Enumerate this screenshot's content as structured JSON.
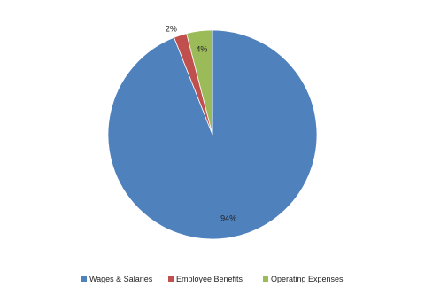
{
  "chart_data": {
    "type": "pie",
    "categories": [
      "Wages & Salaries",
      "Employee Benefits",
      "Operating Expenses"
    ],
    "values": [
      94,
      2,
      4
    ],
    "value_labels": [
      "94%",
      "2%",
      "4%"
    ],
    "colors": [
      "#4f81bd",
      "#c0504d",
      "#9bbb59"
    ],
    "legend": "bottom"
  }
}
